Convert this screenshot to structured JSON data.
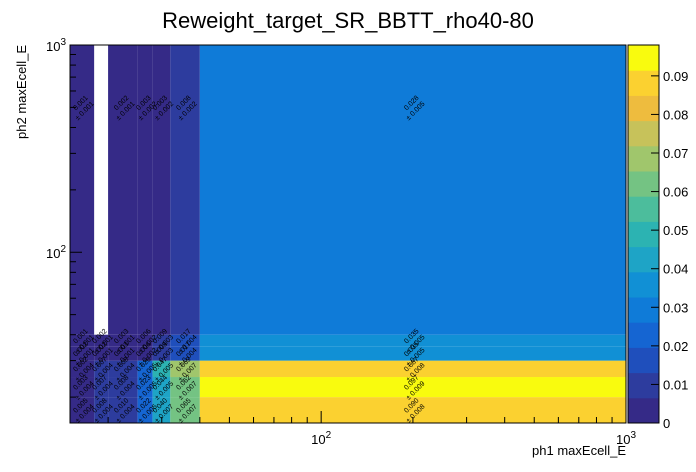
{
  "chart_data": {
    "type": "heatmap",
    "title": "Reweight_target_SR_BBTT_rho40-80",
    "xlabel": "ph1 maxEcell_E",
    "ylabel": "ph2 maxEcell_E",
    "x_scale": "log",
    "y_scale": "log",
    "xlim": [
      15,
      1000
    ],
    "ylim": [
      15,
      1000
    ],
    "x_ticks": [
      {
        "value": 100,
        "label": "10^2"
      },
      {
        "value": 1000,
        "label": "10^3"
      }
    ],
    "y_ticks": [
      {
        "value": 100,
        "label": "10^2"
      },
      {
        "value": 1000,
        "label": "10^3"
      }
    ],
    "x_edges": [
      15,
      18,
      20,
      25,
      28,
      32,
      40,
      1000
    ],
    "y_edges": [
      15,
      20,
      25,
      30,
      35,
      40,
      1000
    ],
    "colorbar": {
      "min": 0,
      "max": 0.098,
      "ticks": [
        "0",
        "0.01",
        "0.02",
        "0.03",
        "0.04",
        "0.05",
        "0.06",
        "0.07",
        "0.08",
        "0.09"
      ]
    },
    "cells": [
      {
        "col": 0,
        "row": 0,
        "value": 0.005,
        "label": "0.005",
        "err": "± 0.004"
      },
      {
        "col": 1,
        "row": 0,
        "value": 0.008,
        "label": "0.008",
        "err": "± 0.004"
      },
      {
        "col": 2,
        "row": 0,
        "value": 0.01,
        "label": "0.010",
        "err": "± 0.004"
      },
      {
        "col": 3,
        "row": 0,
        "value": 0.022,
        "label": "0.022",
        "err": "± 0.005"
      },
      {
        "col": 4,
        "row": 0,
        "value": 0.04,
        "label": "0.040",
        "err": "± 0.007"
      },
      {
        "col": 5,
        "row": 0,
        "value": 0.065,
        "label": "0.065",
        "err": "± 0.007"
      },
      {
        "col": 6,
        "row": 0,
        "value": 0.09,
        "label": "0.090",
        "err": "± 0.008"
      },
      {
        "col": 0,
        "row": 1,
        "value": 0.003,
        "label": "0.003",
        "err": "± 0.004"
      },
      {
        "col": 1,
        "row": 1,
        "value": 0.007,
        "label": "0.007",
        "err": "± 0.004"
      },
      {
        "col": 2,
        "row": 1,
        "value": 0.008,
        "label": "0.008",
        "err": "± 0.004"
      },
      {
        "col": 3,
        "row": 1,
        "value": 0.023,
        "label": "0.023",
        "err": "± 0.005"
      },
      {
        "col": 4,
        "row": 1,
        "value": 0.044,
        "label": "0.044",
        "err": "± 0.005"
      },
      {
        "col": 5,
        "row": 1,
        "value": 0.062,
        "label": "0.062",
        "err": "± 0.007"
      },
      {
        "col": 6,
        "row": 1,
        "value": 0.097,
        "label": "0.097",
        "err": "± 0.009"
      },
      {
        "col": 0,
        "row": 2,
        "value": 0.002,
        "label": "0.002",
        "err": "± 0.004"
      },
      {
        "col": 1,
        "row": 2,
        "value": 0.007,
        "label": "0.007",
        "err": "± 0.004"
      },
      {
        "col": 2,
        "row": 2,
        "value": 0.008,
        "label": "0.008",
        "err": "± 0.004"
      },
      {
        "col": 3,
        "row": 2,
        "value": 0.026,
        "label": "0.026",
        "err": "± 0.005"
      },
      {
        "col": 4,
        "row": 2,
        "value": 0.047,
        "label": "0.047",
        "err": "± 0.005"
      },
      {
        "col": 5,
        "row": 2,
        "value": 0.069,
        "label": "0.069",
        "err": "± 0.007"
      },
      {
        "col": 6,
        "row": 2,
        "value": 0.087,
        "label": "0.087",
        "err": "± 0.008"
      },
      {
        "col": 0,
        "row": 3,
        "value": 0.002,
        "label": "0.002",
        "err": "± 0.001"
      },
      {
        "col": 1,
        "row": 3,
        "value": 0.002,
        "label": "0.002",
        "err": "± 0.001"
      },
      {
        "col": 2,
        "row": 3,
        "value": 0.003,
        "label": "0.003",
        "err": "± 0.001"
      },
      {
        "col": 3,
        "row": 3,
        "value": 0.006,
        "label": "0.006",
        "err": "± 0.002"
      },
      {
        "col": 4,
        "row": 3,
        "value": 0.009,
        "label": "0.009",
        "err": "± 0.003"
      },
      {
        "col": 5,
        "row": 3,
        "value": 0.017,
        "label": "0.017",
        "err": "± 0.004"
      },
      {
        "col": 6,
        "row": 3,
        "value": 0.035,
        "label": "0.035",
        "err": "± 0.005"
      },
      {
        "col": 0,
        "row": 4,
        "value": 0.001,
        "label": "0.001",
        "err": "± 0.001"
      },
      {
        "col": 1,
        "row": 4,
        "value": 0.002,
        "label": "0.002",
        "err": "± 0.001"
      },
      {
        "col": 2,
        "row": 4,
        "value": 0.003,
        "label": "0.003",
        "err": "± 0.001"
      },
      {
        "col": 3,
        "row": 4,
        "value": 0.006,
        "label": "0.006",
        "err": "± 0.002"
      },
      {
        "col": 4,
        "row": 4,
        "value": 0.009,
        "label": "0.009",
        "err": "± 0.003"
      },
      {
        "col": 5,
        "row": 4,
        "value": 0.017,
        "label": "0.017",
        "err": "± 0.004"
      },
      {
        "col": 6,
        "row": 4,
        "value": 0.035,
        "label": "0.035",
        "err": "± 0.005"
      },
      {
        "col": 0,
        "row": 5,
        "value": 0.001,
        "label": "0.001",
        "err": "± 0.001"
      },
      {
        "col": 2,
        "row": 5,
        "value": 0.002,
        "label": "0.002",
        "err": "± 0.001"
      },
      {
        "col": 3,
        "row": 5,
        "value": 0.003,
        "label": "0.003",
        "err": "± 0.002"
      },
      {
        "col": 4,
        "row": 5,
        "value": 0.003,
        "label": "0.003",
        "err": "± 0.002"
      },
      {
        "col": 5,
        "row": 5,
        "value": 0.008,
        "label": "0.008",
        "err": "± 0.002"
      },
      {
        "col": 6,
        "row": 5,
        "value": 0.028,
        "label": "0.028",
        "err": "± 0.005"
      }
    ]
  }
}
